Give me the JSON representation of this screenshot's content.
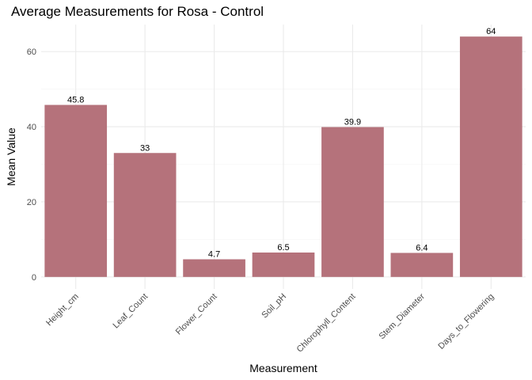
{
  "chart_data": {
    "type": "bar",
    "title": "Average Measurements for Rosa - Control",
    "x_label": "Measurement",
    "y_label": "Mean Value",
    "categories": [
      "Height_cm",
      "Leaf_Count",
      "Flower_Count",
      "Soil_pH",
      "Chlorophyll_Content",
      "Stem_Diameter",
      "Days_to_Flowering"
    ],
    "values": [
      45.8,
      33,
      4.7,
      6.5,
      39.9,
      6.4,
      64
    ],
    "color": "#b5727b",
    "ylim": [
      -3.2,
      67.2
    ],
    "yticks": [
      0,
      20,
      40,
      60
    ],
    "y_minor_ticks": [
      10,
      30,
      50
    ],
    "grid": true
  }
}
